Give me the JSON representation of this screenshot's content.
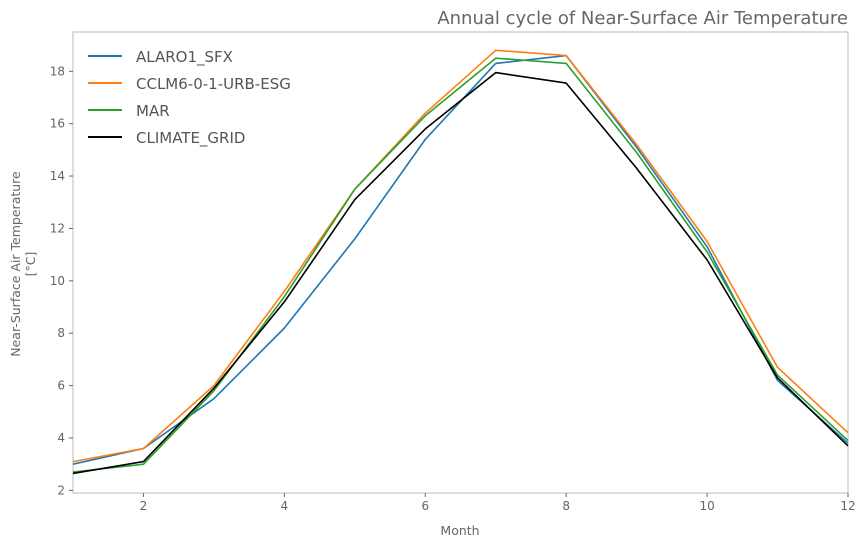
{
  "chart_data": {
    "type": "line",
    "title": "Annual cycle of Near-Surface Air Temperature",
    "xlabel": "Month",
    "ylabel_lines": [
      "Near-Surface Air Temperature",
      "[°C]"
    ],
    "xlim": [
      1,
      12
    ],
    "ylim": [
      1.9,
      19.5
    ],
    "xticks": [
      2,
      4,
      6,
      8,
      10,
      12
    ],
    "yticks": [
      2,
      4,
      6,
      8,
      10,
      12,
      14,
      16,
      18
    ],
    "grid": false,
    "legend": "top-left",
    "x": [
      1,
      2,
      3,
      4,
      5,
      6,
      7,
      8,
      9,
      10,
      11,
      12
    ],
    "series": [
      {
        "name": "ALARO1_SFX",
        "color": "#1f77b4",
        "values": [
          3.0,
          3.6,
          5.5,
          8.2,
          11.6,
          15.4,
          18.3,
          18.6,
          15.1,
          11.3,
          6.2,
          3.8
        ]
      },
      {
        "name": "CCLM6-0-1-URB-ESG",
        "color": "#ff7f0e",
        "values": [
          3.1,
          3.6,
          6.0,
          9.6,
          13.5,
          16.4,
          18.8,
          18.6,
          15.2,
          11.5,
          6.7,
          4.2
        ]
      },
      {
        "name": "MAR",
        "color": "#2ca02c",
        "values": [
          2.7,
          3.0,
          5.8,
          9.4,
          13.5,
          16.3,
          18.5,
          18.3,
          14.9,
          11.1,
          6.4,
          3.9
        ]
      },
      {
        "name": "CLIMATE_GRID",
        "color": "#000000",
        "values": [
          2.65,
          3.1,
          5.9,
          9.2,
          13.1,
          15.8,
          17.95,
          17.55,
          14.3,
          10.8,
          6.3,
          3.7
        ]
      }
    ]
  }
}
